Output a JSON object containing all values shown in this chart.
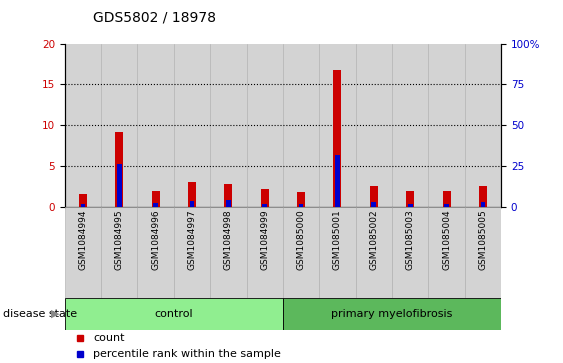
{
  "title": "GDS5802 / 18978",
  "samples": [
    "GSM1084994",
    "GSM1084995",
    "GSM1084996",
    "GSM1084997",
    "GSM1084998",
    "GSM1084999",
    "GSM1085000",
    "GSM1085001",
    "GSM1085002",
    "GSM1085003",
    "GSM1085004",
    "GSM1085005"
  ],
  "counts": [
    1.6,
    9.2,
    2.0,
    3.0,
    2.8,
    2.2,
    1.8,
    16.8,
    2.6,
    1.9,
    1.9,
    2.6
  ],
  "percentile_ranks": [
    1.5,
    26.0,
    2.5,
    3.5,
    4.0,
    2.0,
    1.5,
    31.5,
    3.0,
    2.0,
    2.0,
    3.0
  ],
  "groups": [
    "control",
    "control",
    "control",
    "control",
    "control",
    "control",
    "primary myelofibrosis",
    "primary myelofibrosis",
    "primary myelofibrosis",
    "primary myelofibrosis",
    "primary myelofibrosis",
    "primary myelofibrosis"
  ],
  "group_labels": [
    "control",
    "primary myelofibrosis"
  ],
  "control_count": 6,
  "count_color": "#cc0000",
  "percentile_color": "#0000cc",
  "ylim_left": [
    0,
    20
  ],
  "ylim_right": [
    0,
    100
  ],
  "yticks_left": [
    0,
    5,
    10,
    15,
    20
  ],
  "yticks_right": [
    0,
    25,
    50,
    75,
    100
  ],
  "plot_bg_color": "#d3d3d3",
  "green_light": "#90ee90",
  "green_dark": "#5cb85c",
  "disease_state_label": "disease state",
  "legend_count": "count",
  "legend_percentile": "percentile rank within the sample",
  "title_fontsize": 10,
  "tick_fontsize": 7.5,
  "label_fontsize": 8
}
